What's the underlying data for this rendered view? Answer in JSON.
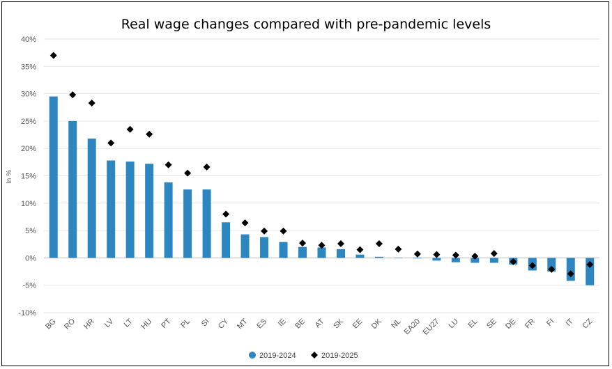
{
  "chart_data": {
    "type": "bar",
    "title": "Real wage changes compared with pre-pandemic levels",
    "xlabel": "",
    "ylabel": "In %",
    "ylim": [
      -10,
      40
    ],
    "yticks": [
      "40%",
      "35%",
      "30%",
      "25%",
      "20%",
      "15%",
      "10%",
      "5%",
      "0%",
      "-5%",
      "-10%"
    ],
    "ytick_values": [
      40,
      35,
      30,
      25,
      20,
      15,
      10,
      5,
      0,
      -5,
      -10
    ],
    "categories": [
      "BG",
      "RO",
      "HR",
      "LV",
      "LT",
      "HU",
      "PT",
      "PL",
      "SI",
      "CY",
      "MT",
      "ES",
      "IE",
      "BE",
      "AT",
      "SK",
      "EE",
      "DK",
      "NL",
      "EA20",
      "EU27",
      "LU",
      "EL",
      "SE",
      "DE",
      "FR",
      "FI",
      "IT",
      "CZ"
    ],
    "series": [
      {
        "name": "2019-2024",
        "kind": "bar",
        "color": "#2e86c1",
        "values": [
          29.5,
          25.0,
          21.8,
          17.8,
          17.6,
          17.2,
          13.8,
          12.5,
          12.5,
          6.5,
          4.3,
          3.8,
          2.9,
          2.0,
          1.9,
          1.6,
          0.6,
          0.2,
          0.0,
          -0.1,
          -0.5,
          -0.8,
          -0.9,
          -0.9,
          -1.2,
          -2.3,
          -2.5,
          -4.2,
          -5.0
        ]
      },
      {
        "name": "2019-2025",
        "kind": "marker",
        "color": "#000000",
        "values": [
          37.0,
          29.8,
          28.3,
          21.0,
          23.5,
          22.6,
          17.0,
          15.5,
          16.6,
          8.0,
          6.4,
          4.9,
          4.9,
          2.7,
          2.3,
          2.6,
          1.5,
          2.6,
          1.6,
          0.7,
          0.6,
          0.5,
          0.3,
          0.8,
          -0.7,
          -1.4,
          -2.1,
          -2.9,
          -1.2
        ]
      }
    ],
    "legend_position": "bottom-center",
    "grid": true
  }
}
